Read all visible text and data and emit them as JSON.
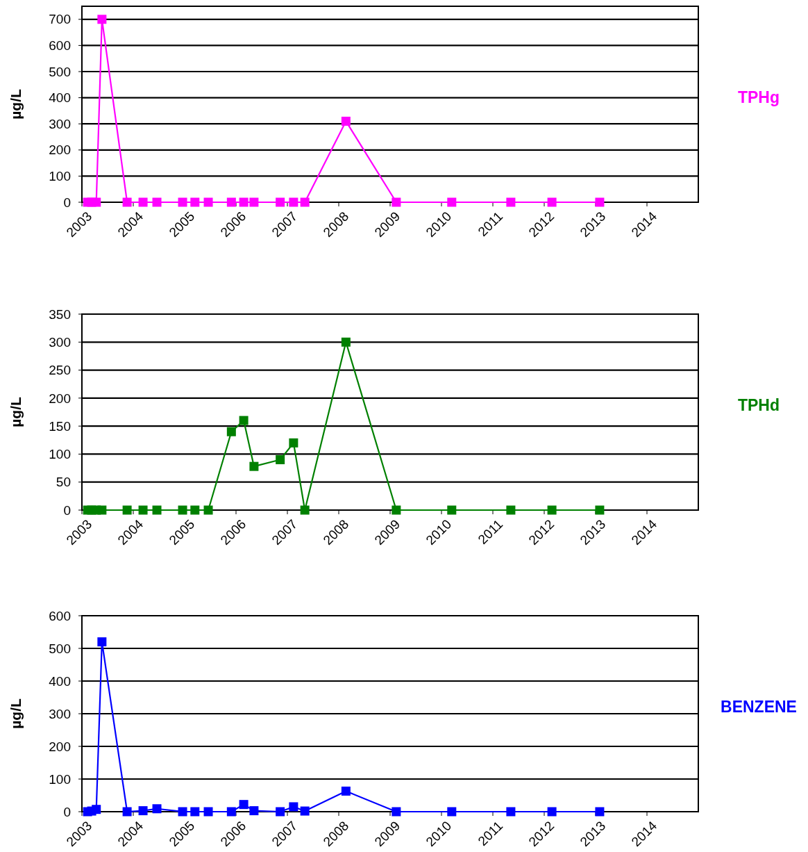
{
  "chart_data": [
    {
      "type": "line",
      "ylabel": "µg/L",
      "x": [
        2003.11,
        2003.19,
        2003.28,
        2003.39,
        2003.88,
        2004.19,
        2004.46,
        2004.96,
        2005.2,
        2005.46,
        2005.91,
        2006.15,
        2006.35,
        2006.86,
        2007.12,
        2007.34,
        2008.14,
        2009.12,
        2010.2,
        2011.35,
        2012.15,
        2013.08
      ],
      "series": [
        {
          "name": "TPHg",
          "color": "#ff00ff",
          "values": [
            0,
            0,
            0,
            700,
            0,
            0,
            0,
            0,
            0,
            0,
            0,
            0,
            0,
            0,
            0,
            0,
            310,
            0,
            0,
            0,
            0,
            0
          ]
        }
      ],
      "xlim": [
        2003,
        2015
      ],
      "xticks": [
        2003,
        2004,
        2005,
        2006,
        2007,
        2008,
        2009,
        2010,
        2011,
        2012,
        2013,
        2014
      ],
      "ylim": [
        0,
        750
      ],
      "yticks": [
        0,
        100,
        200,
        300,
        400,
        500,
        600,
        700
      ],
      "grid": "y",
      "marker": "square",
      "legend": "right"
    },
    {
      "type": "line",
      "ylabel": "µg/L",
      "x": [
        2003.11,
        2003.19,
        2003.28,
        2003.39,
        2003.88,
        2004.19,
        2004.46,
        2004.96,
        2005.2,
        2005.46,
        2005.91,
        2006.15,
        2006.35,
        2006.86,
        2007.12,
        2007.34,
        2008.14,
        2009.12,
        2010.2,
        2011.35,
        2012.15,
        2013.08
      ],
      "series": [
        {
          "name": "TPHd",
          "color": "#008000",
          "values": [
            0,
            0,
            0,
            0,
            0,
            0,
            0,
            0,
            0,
            0,
            140,
            160,
            78,
            90,
            120,
            0,
            300,
            0,
            0,
            0,
            0,
            0
          ]
        }
      ],
      "xlim": [
        2003,
        2015
      ],
      "xticks": [
        2003,
        2004,
        2005,
        2006,
        2007,
        2008,
        2009,
        2010,
        2011,
        2012,
        2013,
        2014
      ],
      "ylim": [
        0,
        350
      ],
      "yticks": [
        0,
        50,
        100,
        150,
        200,
        250,
        300,
        350
      ],
      "grid": "y",
      "marker": "square",
      "legend": "right"
    },
    {
      "type": "line",
      "ylabel": "µg/L",
      "x": [
        2003.11,
        2003.19,
        2003.28,
        2003.39,
        2003.88,
        2004.19,
        2004.46,
        2004.96,
        2005.2,
        2005.46,
        2005.91,
        2006.15,
        2006.35,
        2006.86,
        2007.12,
        2007.34,
        2008.14,
        2009.12,
        2010.2,
        2011.35,
        2012.15,
        2013.08
      ],
      "series": [
        {
          "name": "BENZENE",
          "color": "#0000ff",
          "values": [
            0,
            2,
            7,
            520,
            0,
            3,
            9,
            0,
            0,
            0,
            0,
            22,
            3,
            0,
            15,
            2,
            63,
            0,
            0,
            0,
            0,
            0
          ]
        }
      ],
      "xlim": [
        2003,
        2015
      ],
      "xticks": [
        2003,
        2004,
        2005,
        2006,
        2007,
        2008,
        2009,
        2010,
        2011,
        2012,
        2013,
        2014
      ],
      "ylim": [
        0,
        600
      ],
      "yticks": [
        0,
        100,
        200,
        300,
        400,
        500,
        600
      ],
      "grid": "y",
      "marker": "square",
      "legend": "right"
    }
  ]
}
